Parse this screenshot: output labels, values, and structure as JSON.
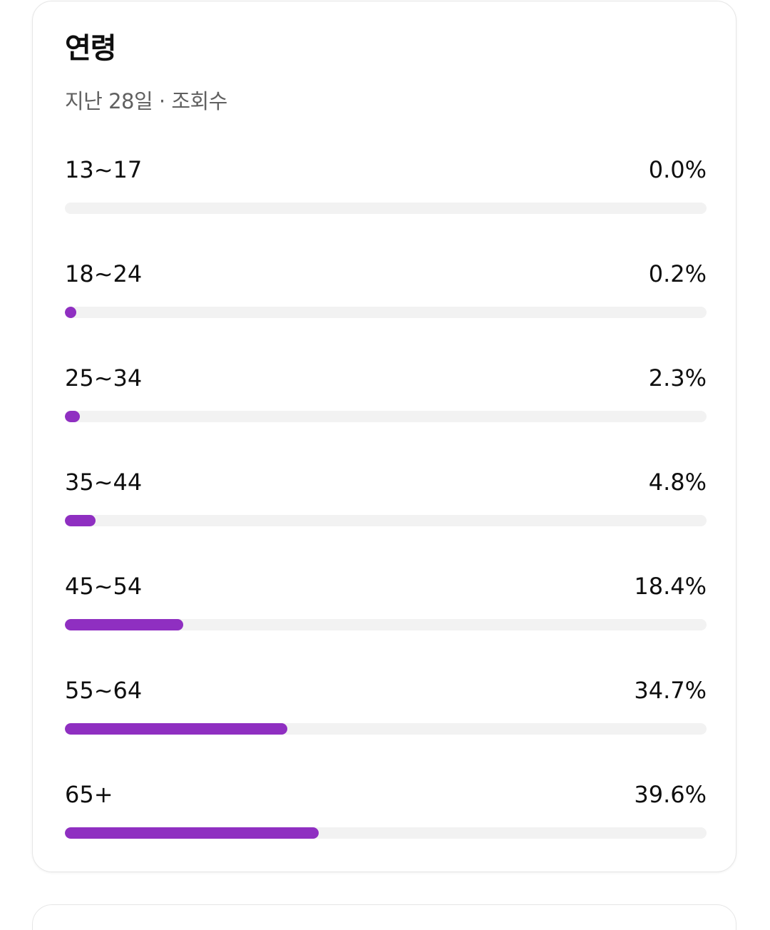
{
  "card": {
    "title": "연령",
    "subtitle": "지난 28일 · 조회수"
  },
  "accent_color": "#8f2fc1",
  "track_color": "#f2f2f2",
  "age_groups": [
    {
      "label": "13~17",
      "value_text": "0.0%",
      "percent": 0.0
    },
    {
      "label": "18~24",
      "value_text": "0.2%",
      "percent": 0.2
    },
    {
      "label": "25~34",
      "value_text": "2.3%",
      "percent": 2.3
    },
    {
      "label": "35~44",
      "value_text": "4.8%",
      "percent": 4.8
    },
    {
      "label": "45~54",
      "value_text": "18.4%",
      "percent": 18.4
    },
    {
      "label": "55~64",
      "value_text": "34.7%",
      "percent": 34.7
    },
    {
      "label": "65+",
      "value_text": "39.6%",
      "percent": 39.6
    }
  ]
}
